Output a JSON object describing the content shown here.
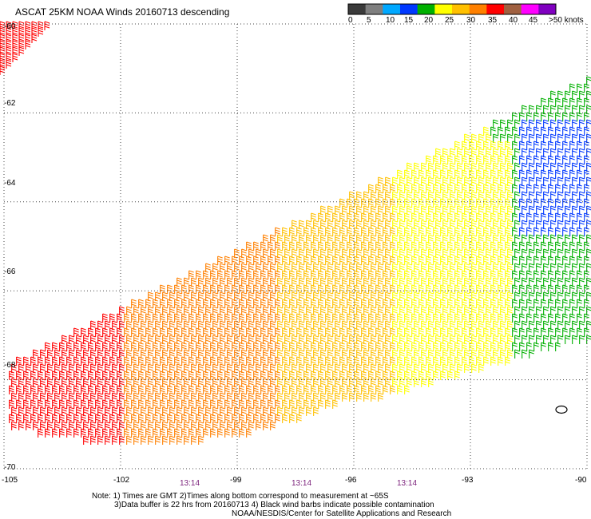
{
  "header": {
    "title": "ASCAT 25KM NOAA Winds 20160713 descending"
  },
  "colorbar": {
    "labels": [
      "0",
      "5",
      "10",
      "15",
      "20",
      "25",
      "30",
      "35",
      "40",
      "45",
      ">50 knots"
    ],
    "colors": [
      "#3a3a3a",
      "#7f7f7f",
      "#00a8ff",
      "#0038ff",
      "#00b000",
      "#ffff00",
      "#ffc000",
      "#ff8000",
      "#ff0000",
      "#a06040",
      "#ff00ff",
      "#8000c0"
    ]
  },
  "axes": {
    "y_ticks": [
      "-60",
      "-62",
      "-64",
      "-66",
      "-68",
      "-70"
    ],
    "x_ticks": [
      "-105",
      "-102",
      "-99",
      "-96",
      "-93",
      "-90"
    ],
    "times": [
      "13:14",
      "13:14",
      "13:14"
    ]
  },
  "notes": {
    "line1": "Note: 1) Times are GMT 2)Times along bottom correspond to measurement at ~65S",
    "line2": "3)Data buffer is 22 hrs from 20160713 4) Black wind barbs indicate possible contamination",
    "line3": "NOAA/NESDIS/Center for Satellite Applications and Research"
  },
  "chart_data": {
    "type": "wind_barbs",
    "title": "ASCAT 25KM NOAA Winds 20160713 descending",
    "xlim": [
      -105,
      -90
    ],
    "ylim": [
      -70,
      -60
    ],
    "x_ticks": [
      -105,
      -102,
      -99,
      -96,
      -93,
      -90
    ],
    "y_ticks": [
      -60,
      -62,
      -64,
      -66,
      -68,
      -70
    ],
    "grid": true,
    "colorbar_bins_knots": [
      0,
      5,
      10,
      15,
      20,
      25,
      30,
      35,
      40,
      45,
      50
    ],
    "swath_polygon_lonlat": [
      [
        -105,
        -67.8
      ],
      [
        -90,
        -61.3
      ],
      [
        -90,
        -67.2
      ],
      [
        -95.8,
        -68.6
      ],
      [
        -96.2,
        -68.6
      ],
      [
        -97.5,
        -69.0
      ],
      [
        -99.0,
        -69.4
      ],
      [
        -102.0,
        -69.6
      ],
      [
        -105,
        -69.2
      ]
    ],
    "wind_speed_regions_knots": [
      {
        "region": "west (lon -105 to -102)",
        "speed": 40
      },
      {
        "region": "central-west (lon -102 to -98)",
        "speed": 37
      },
      {
        "region": "central (lon -98 to -95)",
        "speed": 32
      },
      {
        "region": "central-east (lon -95 to -92)",
        "speed": 27
      },
      {
        "region": "east (lon -92 to -90)",
        "speed": 22
      },
      {
        "region": "northeast near 62-64S, 91-90W",
        "speed": 17
      },
      {
        "region": "northwest corner near 60S, 105W",
        "speed": 40
      }
    ]
  }
}
